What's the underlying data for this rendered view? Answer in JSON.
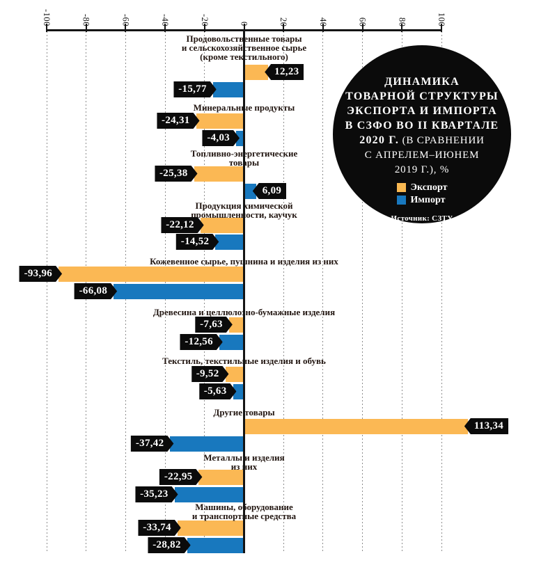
{
  "panel": {
    "title_lines_bold": [
      "ДИНАМИКА",
      "ТОВАРНОЙ СТРУКТУРЫ",
      "ЭКСПОРТА И ИМПОРТА",
      "В СЗФО ВО II КВАРТАЛЕ"
    ],
    "title_line_mixed": {
      "bold": "2020 Г.",
      "regular": " (В СРАВНЕНИИ"
    },
    "title_lines_regular": [
      "С АПРЕЛЕМ–ИЮНЕМ",
      "2019 Г.), %"
    ],
    "legend": [
      {
        "label": "Экспорт",
        "color": "#F9B851"
      },
      {
        "label": "Импорт",
        "color": "#1878BE"
      }
    ],
    "source": "Источник: СЗТУ"
  },
  "colors": {
    "export": "#FBB854",
    "import": "#1878BE",
    "tag_bg": "#0b0b0b",
    "tag_text": "#ffffff",
    "axis": "#141414"
  },
  "chart_data": {
    "type": "bar",
    "orientation": "horizontal",
    "title": "Динамика товарной структуры экспорта и импорта в СЗФО во II квартале 2020 г. (в сравнении с апрелем–июнем 2019 г.), %",
    "source": "Источник: СЗТУ",
    "xlim": [
      -100,
      100
    ],
    "x_ticks": [
      -100,
      -80,
      -60,
      -40,
      -20,
      0,
      20,
      40,
      60,
      80,
      100
    ],
    "x_tick_labels": [
      "-100",
      "-80",
      "-60",
      "-40",
      "-20",
      "0",
      "20",
      "40",
      "60",
      "80",
      "100"
    ],
    "grid": "dotted-vertical",
    "legend_position": "in-circle-right-top",
    "categories": [
      [
        "Продовольственные товары",
        "и сельскохозяйственное сырье",
        "(кроме текстильного)"
      ],
      [
        "Минеральные продукты"
      ],
      [
        "Топливно-энергетические",
        "товары"
      ],
      [
        "Продукция химической",
        "промышленности, каучук"
      ],
      [
        "Кожевенное сырье, пушнина и изделия из них"
      ],
      [
        "Древесина и целлюлозно-бумажные изделия"
      ],
      [
        "Текстиль, текстильные изделия и обувь"
      ],
      [
        "Другие товары"
      ],
      [
        "Металлы и изделия",
        "из них"
      ],
      [
        "Машины, оборудование",
        "и транспортные средства"
      ]
    ],
    "series": [
      {
        "name": "Экспорт",
        "color": "#FBB854",
        "values": [
          12.23,
          -24.31,
          -25.38,
          -22.12,
          -93.96,
          -7.63,
          -9.52,
          113.34,
          -22.95,
          -33.74
        ],
        "labels": [
          "12,23",
          "-24,31",
          "-25,38",
          "-22,12",
          "-93,96",
          "-7,63",
          "-9,52",
          "113,34",
          "-22,95",
          "-33,74"
        ]
      },
      {
        "name": "Импорт",
        "color": "#1878BE",
        "values": [
          -15.77,
          -4.03,
          6.09,
          -14.52,
          -66.08,
          -12.56,
          -5.63,
          -37.42,
          -35.23,
          -28.82
        ],
        "labels": [
          "-15,77",
          "-4,03",
          "6,09",
          "-14,52",
          "-66,08",
          "-12,56",
          "-5,63",
          "-37,42",
          "-35,23",
          "-28,82"
        ]
      }
    ]
  }
}
